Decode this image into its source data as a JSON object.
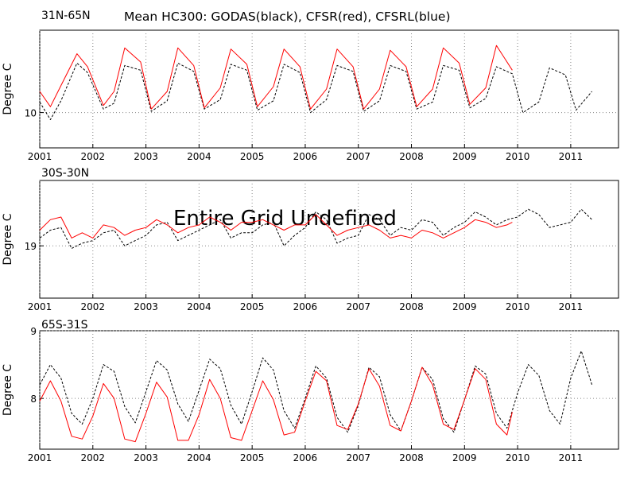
{
  "title": "Mean HC300: GODAS(black), CFSR(red), CFSRL(blue)",
  "overlay_text": "Entire Grid Undefined",
  "colors": {
    "godas": "#000000",
    "cfsr": "#ff0000",
    "cfsrl": "#0000ff",
    "grid": "#888888"
  },
  "chart_data": [
    {
      "type": "line",
      "region": "31N-65N",
      "ylabel": "Degree C",
      "x_tick_labels": [
        "2001",
        "2002",
        "2003",
        "2004",
        "2005",
        "2006",
        "2007",
        "2008",
        "2009",
        "2010",
        "2011"
      ],
      "xlim": [
        2001,
        2011.9
      ],
      "ylim": [
        9.4,
        11.4
      ],
      "y_ticks": [
        {
          "value": 10,
          "label": "10"
        }
      ],
      "grid": true,
      "series": [
        {
          "name": "GODAS",
          "color": "black",
          "style": "dashed",
          "x": [
            2001.0,
            2001.2,
            2001.4,
            2001.7,
            2001.9,
            2002.2,
            2002.4,
            2002.6,
            2002.9,
            2003.1,
            2003.4,
            2003.6,
            2003.9,
            2004.1,
            2004.4,
            2004.6,
            2004.9,
            2005.1,
            2005.4,
            2005.6,
            2005.9,
            2006.1,
            2006.4,
            2006.6,
            2006.9,
            2007.1,
            2007.4,
            2007.6,
            2007.9,
            2008.1,
            2008.4,
            2008.6,
            2008.9,
            2009.1,
            2009.4,
            2009.6,
            2009.9,
            2010.1,
            2010.4,
            2010.6,
            2010.9,
            2011.1,
            2011.4
          ],
          "y": [
            10.18,
            9.88,
            10.2,
            10.84,
            10.68,
            10.06,
            10.16,
            10.8,
            10.72,
            10.02,
            10.2,
            10.84,
            10.7,
            10.06,
            10.22,
            10.82,
            10.72,
            10.04,
            10.2,
            10.82,
            10.68,
            10.0,
            10.22,
            10.8,
            10.7,
            10.02,
            10.2,
            10.8,
            10.7,
            10.06,
            10.18,
            10.8,
            10.72,
            10.08,
            10.24,
            10.78,
            10.66,
            10.0,
            10.18,
            10.76,
            10.64,
            10.04,
            10.36
          ]
        },
        {
          "name": "CFSR",
          "color": "red",
          "style": "solid",
          "x": [
            2001.0,
            2001.2,
            2001.4,
            2001.7,
            2001.9,
            2002.2,
            2002.4,
            2002.6,
            2002.9,
            2003.1,
            2003.4,
            2003.6,
            2003.9,
            2004.1,
            2004.4,
            2004.6,
            2004.9,
            2005.1,
            2005.4,
            2005.6,
            2005.9,
            2006.1,
            2006.4,
            2006.6,
            2006.9,
            2007.1,
            2007.4,
            2007.6,
            2007.9,
            2008.1,
            2008.4,
            2008.6,
            2008.9,
            2009.1,
            2009.4,
            2009.6,
            2009.9
          ],
          "y": [
            10.36,
            10.1,
            10.46,
            11.0,
            10.78,
            10.12,
            10.36,
            11.1,
            10.86,
            10.06,
            10.36,
            11.1,
            10.8,
            10.08,
            10.42,
            11.08,
            10.82,
            10.1,
            10.44,
            11.08,
            10.78,
            10.06,
            10.4,
            11.08,
            10.78,
            10.06,
            10.4,
            11.06,
            10.78,
            10.1,
            10.4,
            11.1,
            10.84,
            10.14,
            10.42,
            11.14,
            10.72
          ]
        },
        {
          "name": "CFSRL",
          "color": "blue",
          "x": [],
          "y": []
        }
      ]
    },
    {
      "type": "line",
      "region": "30S-30N",
      "ylabel": "Degree C",
      "x_tick_labels": [
        "2001",
        "2002",
        "2003",
        "2004",
        "2005",
        "2006",
        "2007",
        "2008",
        "2009",
        "2010",
        "2011"
      ],
      "xlim": [
        2001,
        2011.9
      ],
      "ylim": [
        18.6,
        19.5
      ],
      "y_ticks": [
        {
          "value": 19,
          "label": "19"
        }
      ],
      "grid": true,
      "series": [
        {
          "name": "GODAS",
          "color": "black",
          "style": "dashed",
          "x": [
            2001.0,
            2001.2,
            2001.4,
            2001.6,
            2001.8,
            2002.0,
            2002.2,
            2002.4,
            2002.6,
            2002.8,
            2003.0,
            2003.2,
            2003.4,
            2003.6,
            2003.8,
            2004.0,
            2004.2,
            2004.4,
            2004.6,
            2004.8,
            2005.0,
            2005.2,
            2005.4,
            2005.6,
            2005.8,
            2006.0,
            2006.2,
            2006.4,
            2006.6,
            2006.8,
            2007.0,
            2007.2,
            2007.4,
            2007.6,
            2007.8,
            2008.0,
            2008.2,
            2008.4,
            2008.6,
            2008.8,
            2009.0,
            2009.2,
            2009.4,
            2009.6,
            2009.8,
            2010.0,
            2010.2,
            2010.4,
            2010.6,
            2010.8,
            2011.0,
            2011.2,
            2011.4
          ],
          "y": [
            19.06,
            19.12,
            19.14,
            18.98,
            19.02,
            19.04,
            19.1,
            19.12,
            19.0,
            19.04,
            19.08,
            19.16,
            19.18,
            19.04,
            19.08,
            19.12,
            19.16,
            19.2,
            19.06,
            19.1,
            19.1,
            19.16,
            19.18,
            19.0,
            19.08,
            19.14,
            19.26,
            19.2,
            19.02,
            19.06,
            19.08,
            19.24,
            19.2,
            19.08,
            19.14,
            19.12,
            19.2,
            19.18,
            19.08,
            19.14,
            19.18,
            19.26,
            19.22,
            19.16,
            19.2,
            19.22,
            19.28,
            19.24,
            19.14,
            19.16,
            19.18,
            19.28,
            19.2
          ]
        },
        {
          "name": "CFSR",
          "color": "red",
          "style": "solid",
          "x": [
            2001.0,
            2001.2,
            2001.4,
            2001.6,
            2001.8,
            2002.0,
            2002.2,
            2002.4,
            2002.6,
            2002.8,
            2003.0,
            2003.2,
            2003.4,
            2003.6,
            2003.8,
            2004.0,
            2004.2,
            2004.4,
            2004.6,
            2004.8,
            2005.0,
            2005.2,
            2005.4,
            2005.6,
            2005.8,
            2006.0,
            2006.2,
            2006.4,
            2006.6,
            2006.8,
            2007.0,
            2007.2,
            2007.4,
            2007.6,
            2007.8,
            2008.0,
            2008.2,
            2008.4,
            2008.6,
            2008.8,
            2009.0,
            2009.2,
            2009.4,
            2009.6,
            2009.8,
            2009.9
          ],
          "y": [
            19.12,
            19.2,
            19.22,
            19.06,
            19.1,
            19.06,
            19.16,
            19.14,
            19.08,
            19.12,
            19.14,
            19.2,
            19.16,
            19.1,
            19.14,
            19.16,
            19.22,
            19.18,
            19.12,
            19.18,
            19.18,
            19.2,
            19.16,
            19.12,
            19.16,
            19.16,
            19.24,
            19.16,
            19.08,
            19.12,
            19.14,
            19.16,
            19.12,
            19.06,
            19.08,
            19.06,
            19.12,
            19.1,
            19.06,
            19.1,
            19.14,
            19.2,
            19.18,
            19.14,
            19.16,
            19.18
          ]
        },
        {
          "name": "CFSRL",
          "color": "blue",
          "x": [],
          "y": []
        }
      ]
    },
    {
      "type": "line",
      "region": "65S-31S",
      "ylabel": "Degree C",
      "x_tick_labels": [
        "2001",
        "2002",
        "2003",
        "2004",
        "2005",
        "2006",
        "2007",
        "2008",
        "2009",
        "2010",
        "2011"
      ],
      "xlim": [
        2001,
        2011.9
      ],
      "ylim": [
        7.25,
        9.0
      ],
      "y_ticks": [
        {
          "value": 8,
          "label": "8"
        },
        {
          "value": 9,
          "label": "9"
        }
      ],
      "grid": true,
      "series": [
        {
          "name": "GODAS",
          "color": "black",
          "style": "dashed",
          "x": [
            2001.0,
            2001.2,
            2001.4,
            2001.6,
            2001.8,
            2002.0,
            2002.2,
            2002.4,
            2002.6,
            2002.8,
            2003.0,
            2003.2,
            2003.4,
            2003.6,
            2003.8,
            2004.0,
            2004.2,
            2004.4,
            2004.6,
            2004.8,
            2005.0,
            2005.2,
            2005.4,
            2005.6,
            2005.8,
            2006.0,
            2006.2,
            2006.4,
            2006.6,
            2006.8,
            2007.0,
            2007.2,
            2007.4,
            2007.6,
            2007.8,
            2008.0,
            2008.2,
            2008.4,
            2008.6,
            2008.8,
            2009.0,
            2009.2,
            2009.4,
            2009.6,
            2009.8,
            2010.0,
            2010.2,
            2010.4,
            2010.6,
            2010.8,
            2011.0,
            2011.2,
            2011.4
          ],
          "y": [
            8.2,
            8.5,
            8.3,
            7.78,
            7.62,
            8.0,
            8.5,
            8.4,
            7.88,
            7.64,
            8.1,
            8.56,
            8.42,
            7.92,
            7.66,
            8.12,
            8.58,
            8.44,
            7.9,
            7.62,
            8.1,
            8.6,
            8.42,
            7.82,
            7.56,
            8.0,
            8.48,
            8.3,
            7.72,
            7.5,
            7.9,
            8.46,
            8.32,
            7.76,
            7.52,
            7.96,
            8.46,
            8.28,
            7.7,
            7.5,
            7.98,
            8.48,
            8.36,
            7.78,
            7.56,
            8.08,
            8.5,
            8.34,
            7.82,
            7.62,
            8.3,
            8.7,
            8.2
          ]
        },
        {
          "name": "CFSR",
          "color": "red",
          "style": "solid",
          "x": [
            2001.0,
            2001.2,
            2001.4,
            2001.6,
            2001.8,
            2002.0,
            2002.2,
            2002.4,
            2002.6,
            2002.8,
            2003.0,
            2003.2,
            2003.4,
            2003.6,
            2003.8,
            2004.0,
            2004.2,
            2004.4,
            2004.6,
            2004.8,
            2005.0,
            2005.2,
            2005.4,
            2005.6,
            2005.8,
            2006.0,
            2006.2,
            2006.4,
            2006.6,
            2006.8,
            2007.0,
            2007.2,
            2007.4,
            2007.6,
            2007.8,
            2008.0,
            2008.2,
            2008.4,
            2008.6,
            2008.8,
            2009.0,
            2009.2,
            2009.4,
            2009.6,
            2009.8,
            2009.9
          ],
          "y": [
            7.96,
            8.26,
            7.96,
            7.44,
            7.4,
            7.74,
            8.22,
            8.0,
            7.4,
            7.36,
            7.78,
            8.24,
            8.02,
            7.38,
            7.38,
            7.76,
            8.28,
            8.0,
            7.42,
            7.38,
            7.82,
            8.26,
            7.98,
            7.46,
            7.5,
            7.96,
            8.4,
            8.26,
            7.6,
            7.54,
            7.92,
            8.44,
            8.18,
            7.6,
            7.52,
            7.96,
            8.46,
            8.2,
            7.62,
            7.54,
            7.98,
            8.44,
            8.28,
            7.62,
            7.46,
            7.8
          ]
        },
        {
          "name": "CFSRL",
          "color": "blue",
          "x": [],
          "y": []
        }
      ]
    }
  ]
}
